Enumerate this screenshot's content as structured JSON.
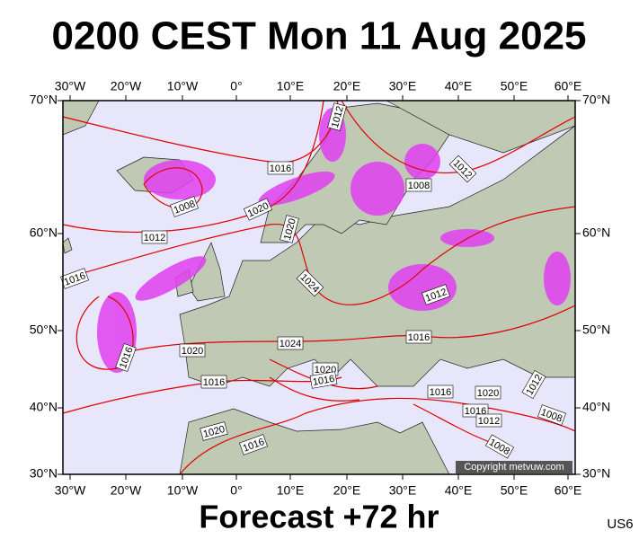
{
  "title": "0200 CEST Mon 11 Aug 2025",
  "longitude_labels": [
    "30°W",
    "20°W",
    "10°W",
    "0°",
    "10°E",
    "20°E",
    "30°E",
    "40°E",
    "50°E",
    "60°E"
  ],
  "latitude_labels": [
    "70°N",
    "60°N",
    "50°N",
    "40°N",
    "30°N"
  ],
  "isobar_labels": [
    "1012",
    "1016",
    "1008",
    "1020",
    "1012",
    "1020",
    "1016",
    "1024",
    "1008",
    "1012",
    "1012",
    "1016",
    "1016",
    "1020",
    "1024",
    "1020",
    "1016",
    "1016",
    "1016",
    "1020",
    "1012",
    "1016",
    "1012",
    "1008",
    "1008",
    "1020",
    "1016"
  ],
  "copyright": "Copyright metvuw.com",
  "footer": {
    "forecast": "Forecast +72 hr",
    "model": "US6"
  }
}
